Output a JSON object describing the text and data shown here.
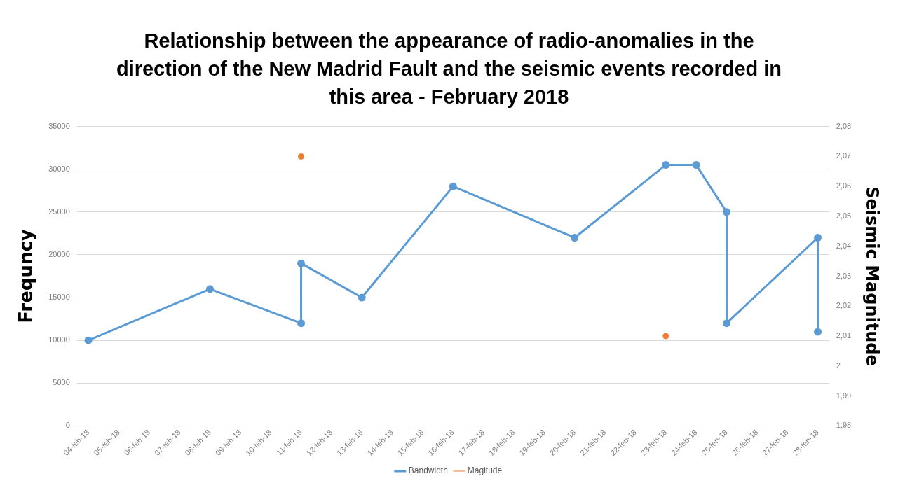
{
  "chart_data": {
    "type": "line",
    "title": "Relationship between the appearance of radio-anomalies in the direction of the New Madrid Fault and the seismic events recorded in this area - February 2018",
    "ylabel": "Frequncy",
    "y2label": "Seismic Magnitude",
    "series": [
      {
        "name": "Bandwidth",
        "type": "line",
        "color": "#5b9bd5",
        "x": [
          "2018-02-04",
          "2018-02-08",
          "2018-02-11",
          "2018-02-11",
          "2018-02-13",
          "2018-02-16",
          "2018-02-20",
          "2018-02-23",
          "2018-02-24",
          "2018-02-25",
          "2018-02-25",
          "2018-02-28",
          "2018-02-28"
        ],
        "values": [
          10000,
          16000,
          12000,
          19000,
          15000,
          28000,
          22000,
          30500,
          30500,
          25000,
          12000,
          22000,
          11000
        ]
      },
      {
        "name": "Magitude",
        "type": "scatter",
        "axis": "y2",
        "color": "#ed7d31",
        "x": [
          "2018-02-11",
          "2018-02-23"
        ],
        "values": [
          2.07,
          2.01
        ]
      }
    ],
    "xlim": [
      "2018-02-03T15:00",
      "2018-02-28T09:00"
    ],
    "xticks": [
      {
        "value": "2018-02-04",
        "label": "04-feb-18"
      },
      {
        "value": "2018-02-05",
        "label": "05-feb-18"
      },
      {
        "value": "2018-02-06",
        "label": "06-feb-18"
      },
      {
        "value": "2018-02-07",
        "label": "07-feb-18"
      },
      {
        "value": "2018-02-08",
        "label": "08-feb-18"
      },
      {
        "value": "2018-02-09",
        "label": "09-feb-18"
      },
      {
        "value": "2018-02-10",
        "label": "10-feb-18"
      },
      {
        "value": "2018-02-11",
        "label": "11-feb-18"
      },
      {
        "value": "2018-02-12",
        "label": "12-feb-18"
      },
      {
        "value": "2018-02-13",
        "label": "13-feb-18"
      },
      {
        "value": "2018-02-14",
        "label": "14-feb-18"
      },
      {
        "value": "2018-02-15",
        "label": "15-feb-18"
      },
      {
        "value": "2018-02-16",
        "label": "16-feb-18"
      },
      {
        "value": "2018-02-17",
        "label": "17-feb-18"
      },
      {
        "value": "2018-02-18",
        "label": "18-feb-18"
      },
      {
        "value": "2018-02-19",
        "label": "19-feb-18"
      },
      {
        "value": "2018-02-20",
        "label": "20-feb-18"
      },
      {
        "value": "2018-02-21",
        "label": "21-feb-18"
      },
      {
        "value": "2018-02-22",
        "label": "22-feb-18"
      },
      {
        "value": "2018-02-23",
        "label": "23-feb-18"
      },
      {
        "value": "2018-02-24",
        "label": "24-feb-18"
      },
      {
        "value": "2018-02-25",
        "label": "25-feb-18"
      },
      {
        "value": "2018-02-26",
        "label": "26-feb-18"
      },
      {
        "value": "2018-02-27",
        "label": "27-feb-18"
      },
      {
        "value": "2018-02-28",
        "label": "28-feb-18"
      }
    ],
    "ylim": [
      0,
      35000
    ],
    "yticks": [
      0,
      5000,
      10000,
      15000,
      20000,
      25000,
      30000,
      35000
    ],
    "y2lim": [
      1.98,
      2.08
    ],
    "y2ticks": [
      {
        "value": 1.98,
        "label": "1,98"
      },
      {
        "value": 1.99,
        "label": "1,99"
      },
      2,
      {
        "value": 2.01,
        "label": "2,01"
      },
      {
        "value": 2.02,
        "label": "2,02"
      },
      {
        "value": 2.03,
        "label": "2,03"
      },
      {
        "value": 2.04,
        "label": "2,04"
      },
      {
        "value": 2.05,
        "label": "2,05"
      },
      {
        "value": 2.06,
        "label": "2,06"
      },
      {
        "value": 2.07,
        "label": "2,07"
      },
      {
        "value": 2.08,
        "label": "2,08"
      }
    ],
    "grid": "y",
    "legend": "bottom",
    "marker": "circle",
    "line_style": "solid"
  }
}
